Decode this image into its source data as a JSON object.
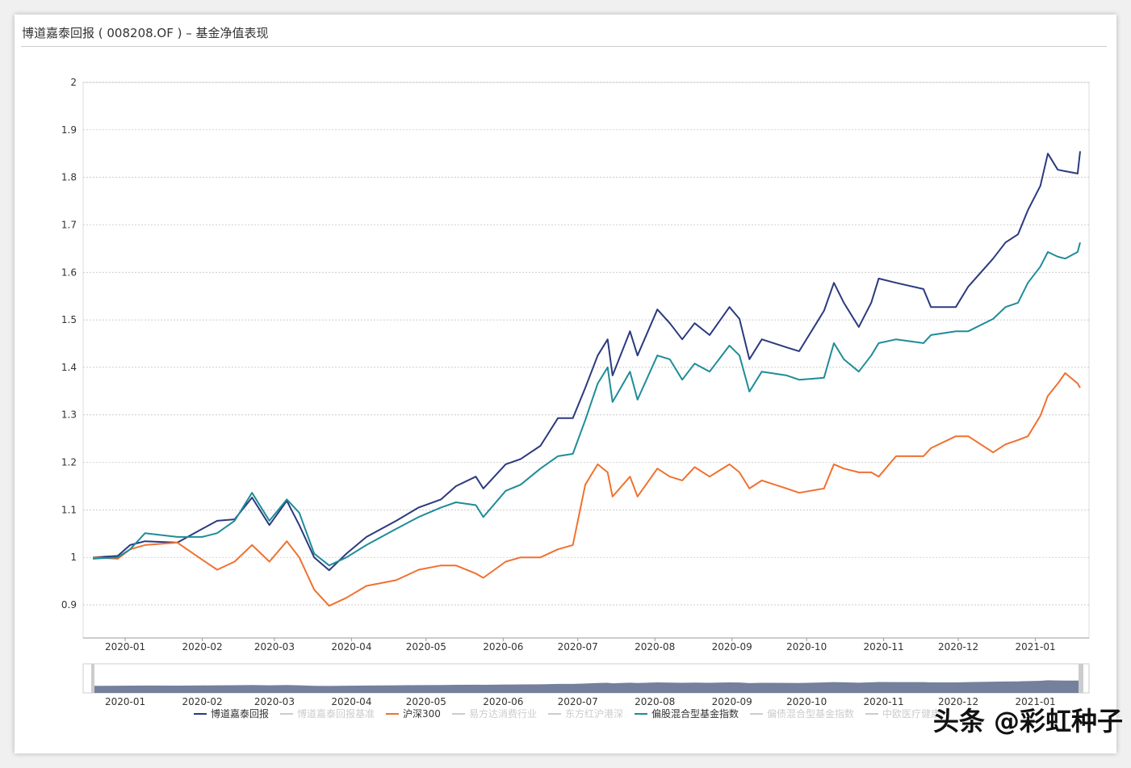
{
  "title": "博道嘉泰回报 ( 008208.OF ) – 基金净值表现",
  "watermark": "头条 @彩虹种子",
  "legend": [
    {
      "label": "博道嘉泰回报",
      "color": "#2b3a7e",
      "active": true
    },
    {
      "label": "博道嘉泰回报基准",
      "color": "#cccccc",
      "active": false
    },
    {
      "label": "沪深300",
      "color": "#f0712f",
      "active": true
    },
    {
      "label": "易方达消费行业",
      "color": "#cccccc",
      "active": false
    },
    {
      "label": "东方红沪港深",
      "color": "#cccccc",
      "active": false
    },
    {
      "label": "偏股混合型基金指数",
      "color": "#1f8c99",
      "active": true
    },
    {
      "label": "偏债混合型基金指数",
      "color": "#cccccc",
      "active": false
    },
    {
      "label": "中欧医疗健康",
      "color": "#cccccc",
      "active": false
    }
  ],
  "chart_data": {
    "type": "line",
    "title": "博道嘉泰回报 ( 008208.OF ) – 基金净值表现",
    "xlabel": "",
    "ylabel": "",
    "ylim": [
      0.9,
      2
    ],
    "yticks": [
      "0.9",
      "1",
      "1.1",
      "1.2",
      "1.3",
      "1.4",
      "1.5",
      "1.6",
      "1.7",
      "1.8",
      "1.9",
      "2"
    ],
    "xticks": [
      "2020-01",
      "2020-02",
      "2020-03",
      "2020-04",
      "2020-05",
      "2020-06",
      "2020-07",
      "2020-08",
      "2020-09",
      "2020-10",
      "2020-11",
      "2020-12",
      "2021-01"
    ],
    "xrange": [
      "2019-12-19",
      "2021-01-19"
    ],
    "grid": true,
    "legend_position": "bottom",
    "x": [
      "2019-12-19",
      "2019-12-29",
      "2020-01-03",
      "2020-01-09",
      "2020-01-22",
      "2020-02-01",
      "2020-02-07",
      "2020-02-14",
      "2020-02-21",
      "2020-02-28",
      "2020-03-06",
      "2020-03-11",
      "2020-03-17",
      "2020-03-23",
      "2020-03-30",
      "2020-04-07",
      "2020-04-19",
      "2020-04-28",
      "2020-05-07",
      "2020-05-13",
      "2020-05-21",
      "2020-05-24",
      "2020-06-02",
      "2020-06-08",
      "2020-06-16",
      "2020-06-23",
      "2020-06-29",
      "2020-07-04",
      "2020-07-09",
      "2020-07-13",
      "2020-07-15",
      "2020-07-22",
      "2020-07-25",
      "2020-08-02",
      "2020-08-07",
      "2020-08-12",
      "2020-08-17",
      "2020-08-23",
      "2020-08-31",
      "2020-09-04",
      "2020-09-08",
      "2020-09-13",
      "2020-09-23",
      "2020-09-28",
      "2020-10-08",
      "2020-10-12",
      "2020-10-16",
      "2020-10-22",
      "2020-10-27",
      "2020-10-30",
      "2020-11-06",
      "2020-11-17",
      "2020-11-20",
      "2020-11-30",
      "2020-12-05",
      "2020-12-15",
      "2020-12-20",
      "2020-12-25",
      "2020-12-29",
      "2021-01-03",
      "2021-01-06",
      "2021-01-10",
      "2021-01-13",
      "2021-01-18",
      "2021-01-19"
    ],
    "series": [
      {
        "name": "博道嘉泰回报",
        "color": "#2b3a7e",
        "values": [
          1.0,
          1.003,
          1.026,
          1.034,
          1.031,
          1.06,
          1.077,
          1.08,
          1.126,
          1.068,
          1.119,
          1.068,
          1.0,
          0.973,
          1.008,
          1.043,
          1.077,
          1.105,
          1.122,
          1.15,
          1.17,
          1.145,
          1.196,
          1.207,
          1.235,
          1.293,
          1.293,
          1.357,
          1.425,
          1.459,
          1.383,
          1.476,
          1.425,
          1.522,
          1.493,
          1.459,
          1.493,
          1.468,
          1.527,
          1.502,
          1.417,
          1.459,
          1.442,
          1.434,
          1.519,
          1.578,
          1.536,
          1.485,
          1.536,
          1.587,
          1.578,
          1.565,
          1.527,
          1.527,
          1.57,
          1.629,
          1.663,
          1.68,
          1.731,
          1.782,
          1.85,
          1.816,
          1.813,
          1.808,
          1.855
        ]
      },
      {
        "name": "沪深300",
        "color": "#f0712f",
        "values": [
          1.0,
          0.997,
          1.017,
          1.026,
          1.031,
          0.995,
          0.974,
          0.991,
          1.026,
          0.991,
          1.034,
          1.0,
          0.932,
          0.898,
          0.915,
          0.94,
          0.952,
          0.974,
          0.983,
          0.983,
          0.966,
          0.957,
          0.991,
          1.0,
          1.0,
          1.017,
          1.026,
          1.153,
          1.196,
          1.179,
          1.128,
          1.17,
          1.128,
          1.187,
          1.17,
          1.162,
          1.19,
          1.17,
          1.196,
          1.179,
          1.145,
          1.162,
          1.145,
          1.136,
          1.145,
          1.196,
          1.187,
          1.179,
          1.179,
          1.17,
          1.213,
          1.213,
          1.23,
          1.255,
          1.255,
          1.221,
          1.238,
          1.247,
          1.255,
          1.298,
          1.34,
          1.366,
          1.388,
          1.366,
          1.357
        ]
      },
      {
        "name": "偏股混合型基金指数",
        "color": "#1f8c99",
        "values": [
          0.997,
          1.0,
          1.017,
          1.051,
          1.043,
          1.043,
          1.051,
          1.077,
          1.136,
          1.077,
          1.122,
          1.094,
          1.008,
          0.983,
          1.0,
          1.026,
          1.06,
          1.085,
          1.105,
          1.116,
          1.11,
          1.085,
          1.14,
          1.153,
          1.187,
          1.213,
          1.218,
          1.289,
          1.366,
          1.4,
          1.327,
          1.391,
          1.332,
          1.425,
          1.417,
          1.374,
          1.408,
          1.391,
          1.446,
          1.425,
          1.349,
          1.391,
          1.383,
          1.374,
          1.378,
          1.451,
          1.417,
          1.391,
          1.425,
          1.451,
          1.459,
          1.451,
          1.468,
          1.476,
          1.476,
          1.502,
          1.527,
          1.536,
          1.578,
          1.612,
          1.643,
          1.633,
          1.629,
          1.643,
          1.663
        ]
      }
    ]
  }
}
